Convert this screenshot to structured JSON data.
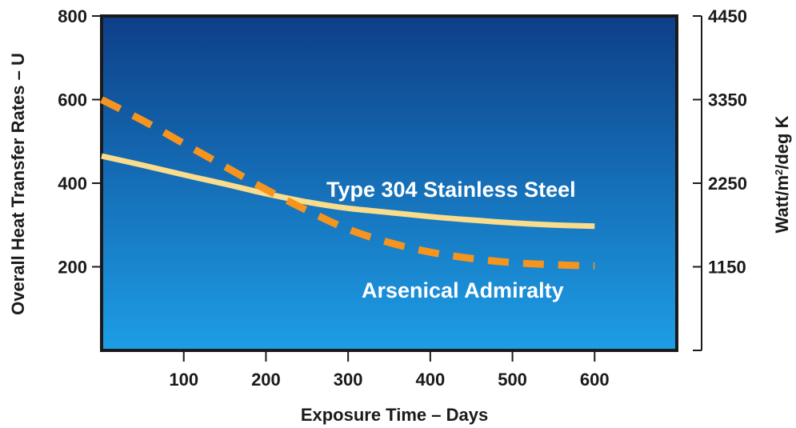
{
  "chart_data": {
    "type": "line",
    "xlabel": "Exposure Time – Days",
    "ylabel": "Overall Heat Transfer Rates – U",
    "y2label": "Watt/m²/deg K",
    "xlim": [
      0,
      700
    ],
    "ylim": [
      0,
      800
    ],
    "x_ticks": [
      100,
      200,
      300,
      400,
      500,
      600
    ],
    "y_ticks": [
      200,
      400,
      600,
      800
    ],
    "y2_ticks": [
      {
        "label": "1150",
        "at": 200
      },
      {
        "label": "2250",
        "at": 400
      },
      {
        "label": "3350",
        "at": 600
      },
      {
        "label": "4450",
        "at": 800
      }
    ],
    "grid": false,
    "background_gradient": [
      "#0d3f88",
      "#1d9ee6"
    ],
    "series": [
      {
        "name": "Type 304 Stainless Steel",
        "style": "solid",
        "color": "#f9dc8c",
        "x": [
          0,
          50,
          100,
          150,
          200,
          250,
          300,
          350,
          400,
          450,
          500,
          550,
          600
        ],
        "y": [
          465,
          443,
          420,
          398,
          375,
          355,
          340,
          330,
          320,
          312,
          305,
          300,
          297
        ]
      },
      {
        "name": "Arsenical Admiralty",
        "style": "dashed",
        "color": "#f7941d",
        "x": [
          0,
          50,
          100,
          150,
          200,
          250,
          300,
          350,
          400,
          450,
          500,
          550,
          600
        ],
        "y": [
          600,
          550,
          495,
          440,
          385,
          335,
          290,
          258,
          235,
          220,
          210,
          205,
          202
        ]
      }
    ]
  }
}
